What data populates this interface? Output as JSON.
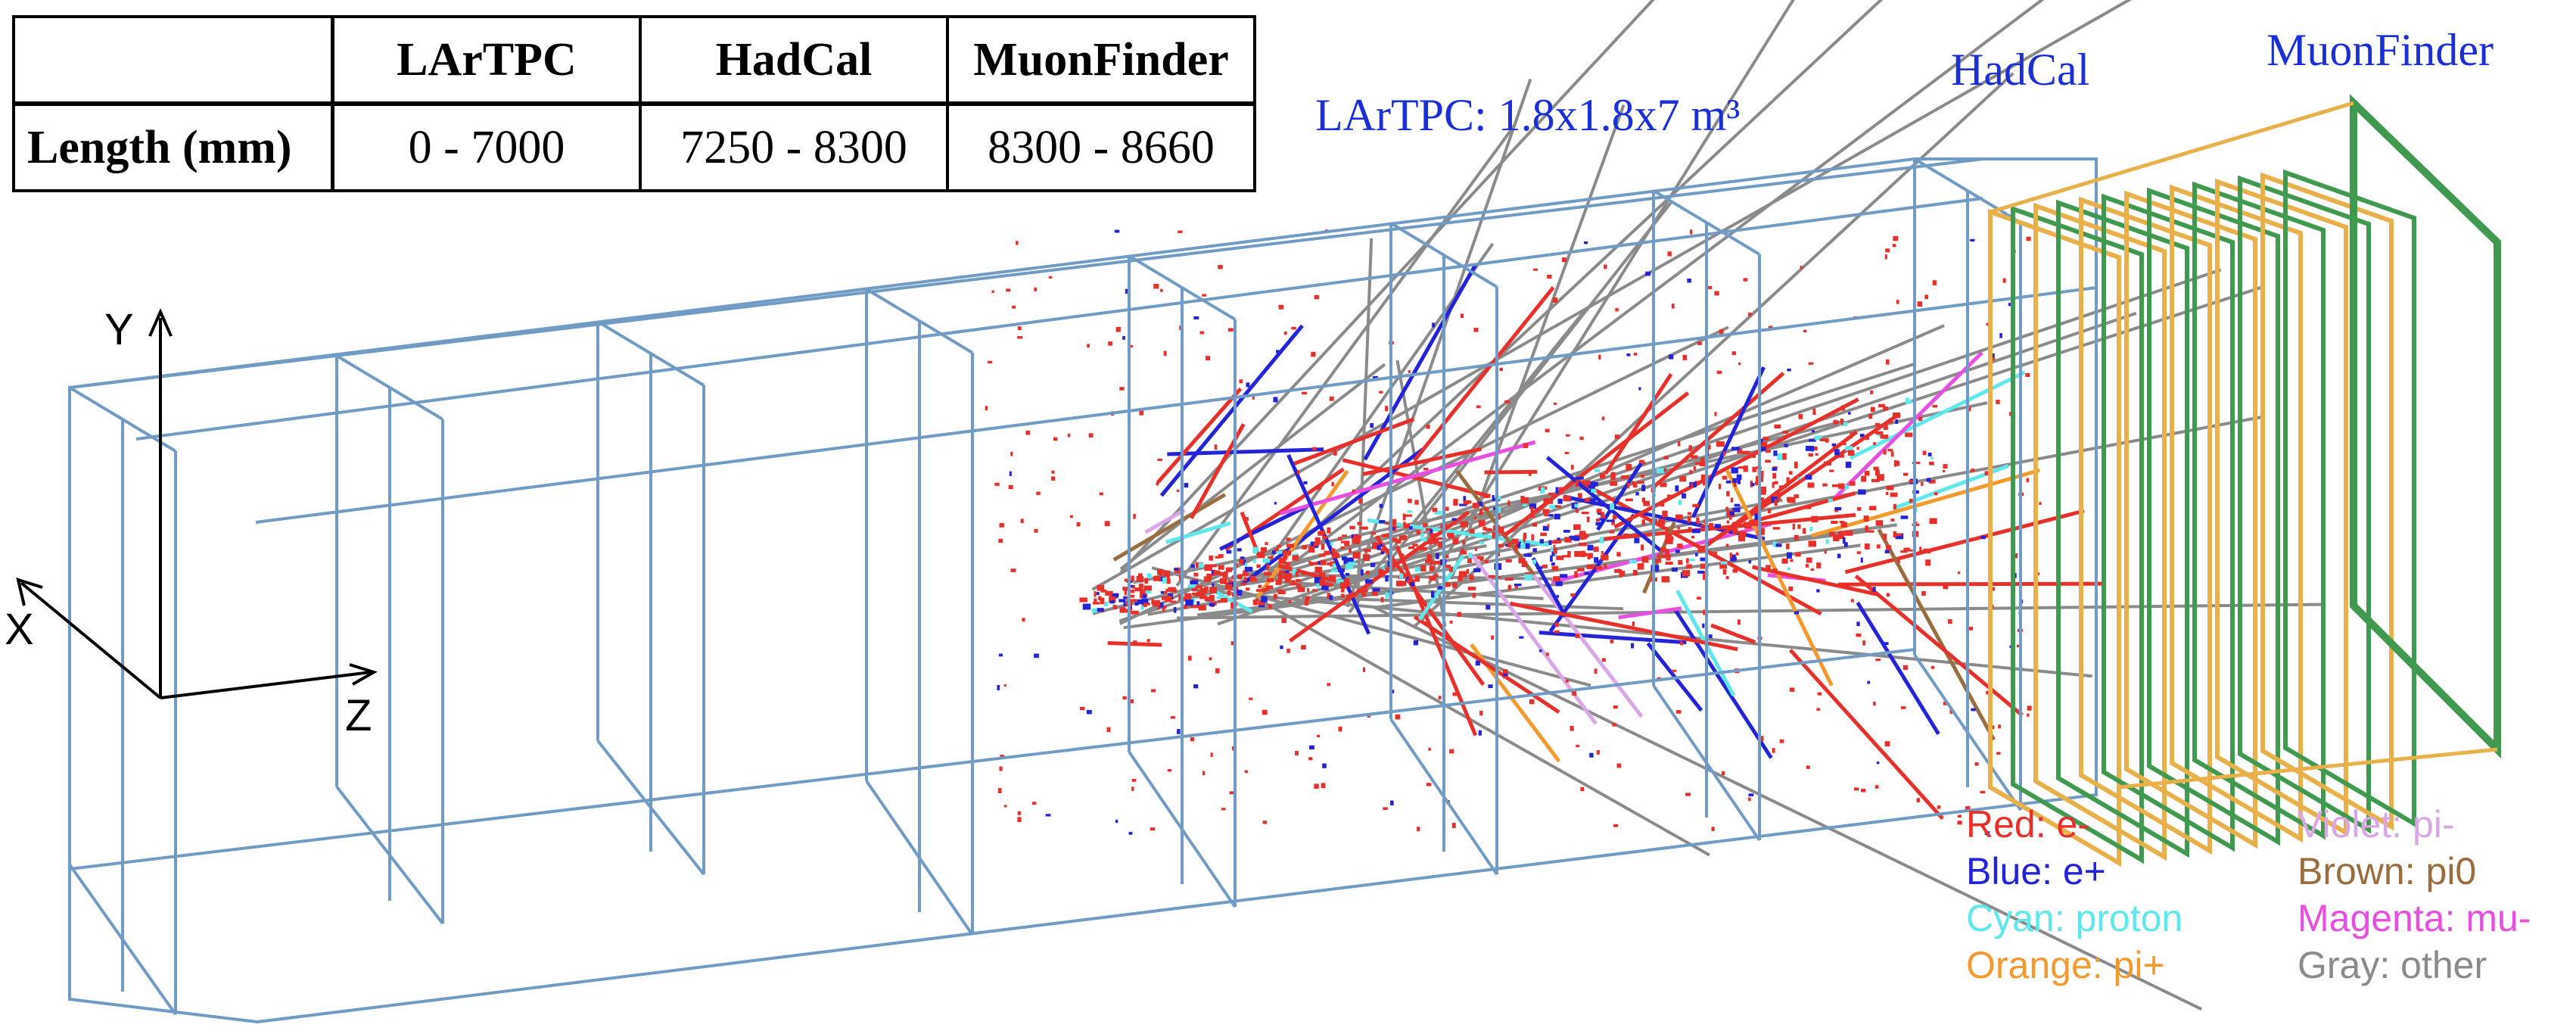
{
  "table": {
    "headers": [
      "",
      "LArTPC",
      "HadCal",
      "MuonFinder"
    ],
    "row_label": "Length (mm)",
    "values": [
      "0 - 7000",
      "7250 - 8300",
      "8300 - 8660"
    ]
  },
  "labels": {
    "lartpc": "LArTPC: 1.8x1.8x7 m³",
    "hadcal": "HadCal",
    "muonfinder": "MuonFinder"
  },
  "axes": {
    "y": "Y",
    "x": "X",
    "z": "Z"
  },
  "legend": [
    {
      "label": "Red: e-",
      "color": "#e8302a"
    },
    {
      "label": "Blue: e+",
      "color": "#2323d8"
    },
    {
      "label": "Cyan: proton",
      "color": "#5fe8ec"
    },
    {
      "label": "Orange: pi+",
      "color": "#f39a2c"
    },
    {
      "label": "Violet: pi-",
      "color": "#dba6e6"
    },
    {
      "label": "Brown: pi0",
      "color": "#9a6d3e"
    },
    {
      "label": "Magenta: mu-",
      "color": "#e84fe0"
    },
    {
      "label": "Gray: other",
      "color": "#8a8a8a"
    }
  ],
  "colors": {
    "detector_frame": "#6f9bc4",
    "hadcal_frame": "#e9b04a",
    "muon_frame": "#3f9a4f",
    "label_blue": "#1a2fd6"
  }
}
